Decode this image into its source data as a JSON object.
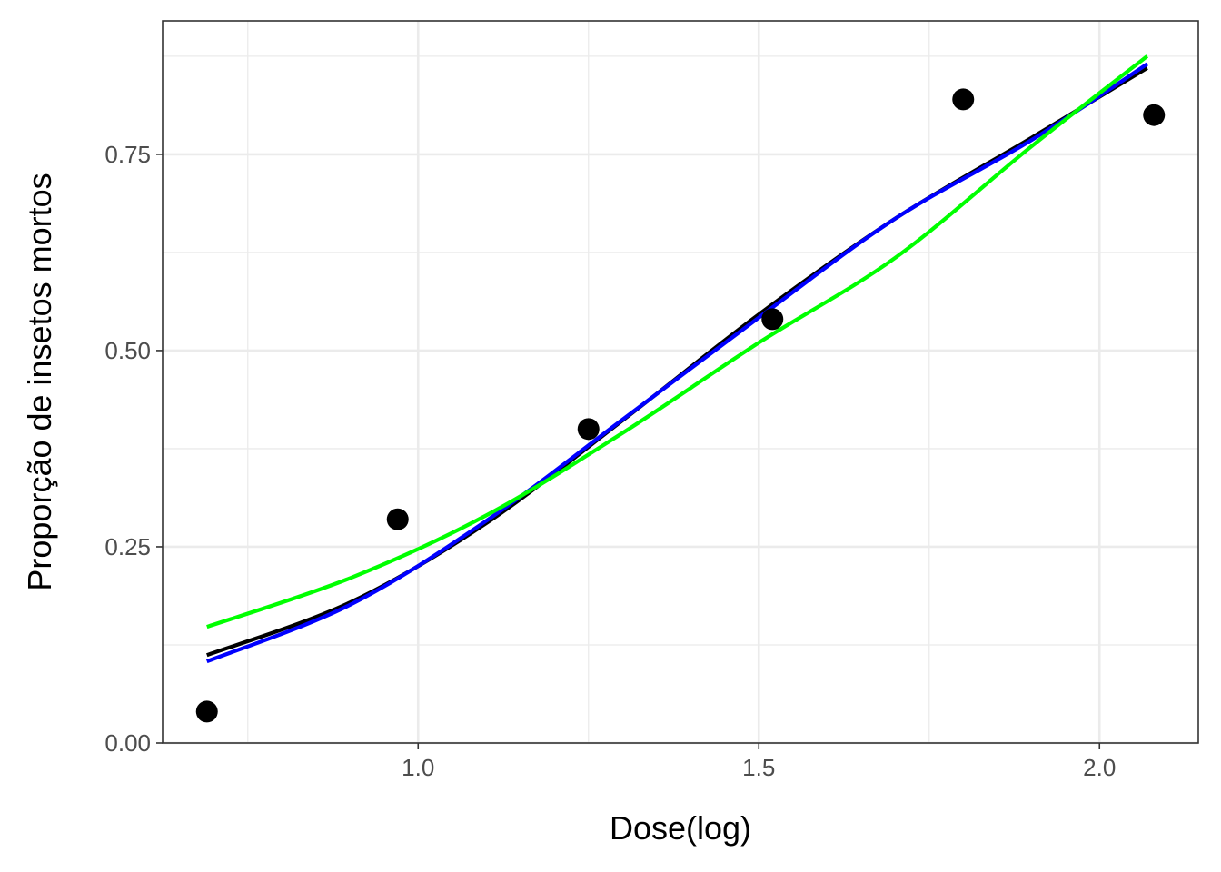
{
  "chart_data": {
    "type": "scatter",
    "title": "",
    "xlabel": "Dose(log)",
    "ylabel": "Proporção de insetos mortos",
    "xlim": [
      0.625,
      2.145
    ],
    "ylim": [
      0.0,
      0.92
    ],
    "x_ticks": [
      1.0,
      1.5,
      2.0
    ],
    "x_tick_labels": [
      "1.0",
      "1.5",
      "2.0"
    ],
    "x_minor_ticks": [
      0.75,
      1.25,
      1.75
    ],
    "y_ticks": [
      0.0,
      0.25,
      0.5,
      0.75
    ],
    "y_tick_labels": [
      "0.00",
      "0.25",
      "0.50",
      "0.75"
    ],
    "y_minor_ticks": [
      0.125,
      0.375,
      0.625,
      0.875
    ],
    "grid": true,
    "legend": "none",
    "points": {
      "x": [
        0.69,
        0.97,
        1.25,
        1.52,
        1.8,
        2.08
      ],
      "y": [
        0.04,
        0.285,
        0.4,
        0.54,
        0.82,
        0.8
      ],
      "color": "#000000"
    },
    "series": [
      {
        "color": "#000000",
        "x": [
          0.69,
          0.9,
          1.1,
          1.3,
          1.5,
          1.7,
          1.9,
          2.07
        ],
        "y": [
          0.112,
          0.179,
          0.28,
          0.411,
          0.546,
          0.668,
          0.771,
          0.86
        ]
      },
      {
        "color": "#0000ff",
        "x": [
          0.69,
          0.9,
          1.1,
          1.3,
          1.5,
          1.7,
          1.9,
          2.07
        ],
        "y": [
          0.104,
          0.176,
          0.283,
          0.412,
          0.542,
          0.668,
          0.768,
          0.865
        ]
      },
      {
        "color": "#00ff00",
        "x": [
          0.69,
          0.9,
          1.1,
          1.3,
          1.5,
          1.7,
          1.9,
          2.07
        ],
        "y": [
          0.148,
          0.21,
          0.29,
          0.395,
          0.51,
          0.618,
          0.76,
          0.875
        ]
      }
    ]
  }
}
